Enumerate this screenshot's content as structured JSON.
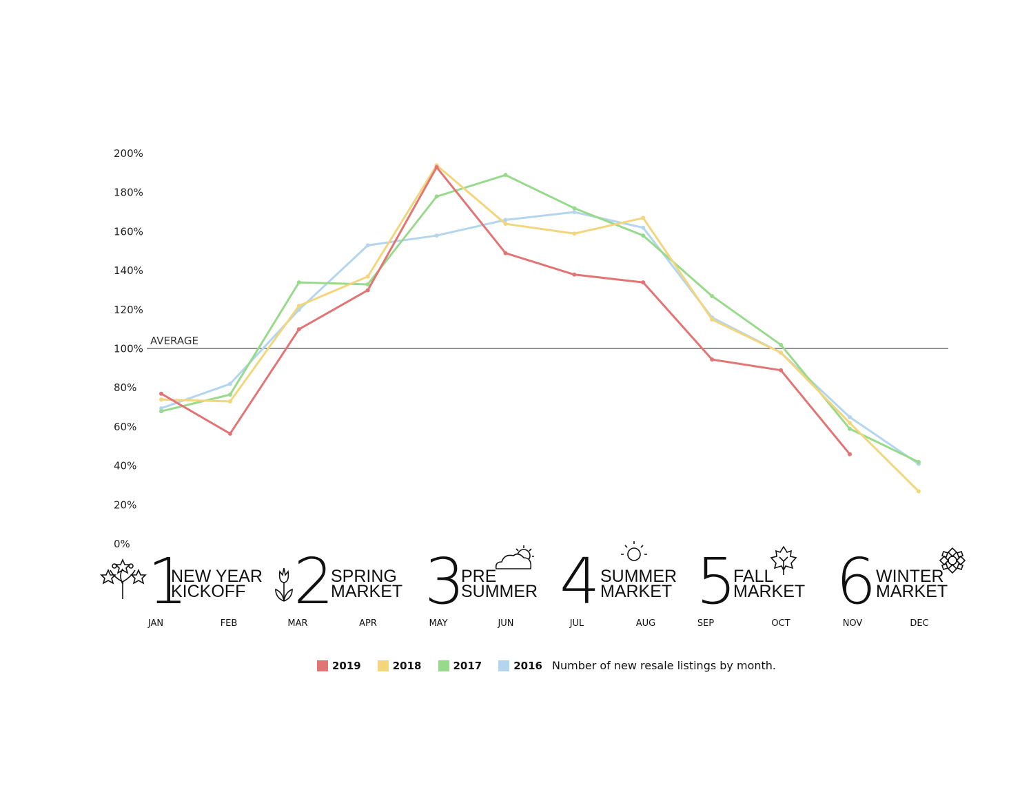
{
  "chart_data": {
    "type": "line",
    "categories": [
      "JAN",
      "FEB",
      "MAR",
      "APR",
      "MAY",
      "JUN",
      "JUL",
      "AUG",
      "SEP",
      "OCT",
      "NOV",
      "DEC"
    ],
    "ylim": [
      0,
      200
    ],
    "yticks": [
      "0%",
      "20%",
      "40%",
      "60%",
      "80%",
      "100%",
      "120%",
      "140%",
      "160%",
      "180%",
      "200%"
    ],
    "ytick_values": [
      0,
      20,
      40,
      60,
      80,
      100,
      120,
      140,
      160,
      180,
      200
    ],
    "grid": false,
    "reference_line": {
      "value": 100,
      "label": "AVERAGE"
    },
    "series": [
      {
        "name": "2016",
        "color": "#b3d5ee",
        "values": [
          69.5,
          82,
          120,
          153,
          158,
          166,
          170,
          162,
          116,
          98,
          65,
          41
        ]
      },
      {
        "name": "2017",
        "color": "#98da8c",
        "values": [
          68,
          76.5,
          134,
          133,
          178,
          189,
          172,
          158,
          127,
          102,
          59,
          42
        ]
      },
      {
        "name": "2018",
        "color": "#f3d57c",
        "values": [
          74,
          73,
          122,
          137,
          194,
          164,
          159,
          167,
          115,
          98,
          62,
          27
        ]
      },
      {
        "name": "2019",
        "color": "#e27474",
        "values": [
          77,
          56.5,
          110,
          130,
          193,
          149,
          138,
          134,
          94.5,
          89,
          46,
          null
        ]
      }
    ],
    "legend_order": [
      "2019",
      "2018",
      "2017",
      "2016"
    ],
    "legend_placement": "bottom",
    "caption": "Number of new resale listings by month."
  },
  "seasons": [
    {
      "number": "1",
      "line1": "NEW YEAR",
      "line2": "KICKOFF",
      "icon": "fireworks-icon"
    },
    {
      "number": "2",
      "line1": "SPRING",
      "line2": "MARKET",
      "icon": "tulip-icon"
    },
    {
      "number": "3",
      "line1": "PRE",
      "line2": "SUMMER",
      "icon": "sun-cloud-icon"
    },
    {
      "number": "4",
      "line1": "SUMMER",
      "line2": "MARKET",
      "icon": "sun-icon"
    },
    {
      "number": "5",
      "line1": "FALL",
      "line2": "MARKET",
      "icon": "maple-leaf-icon"
    },
    {
      "number": "6",
      "line1": "WINTER",
      "line2": "MARKET",
      "icon": "snowflake-icon"
    }
  ]
}
